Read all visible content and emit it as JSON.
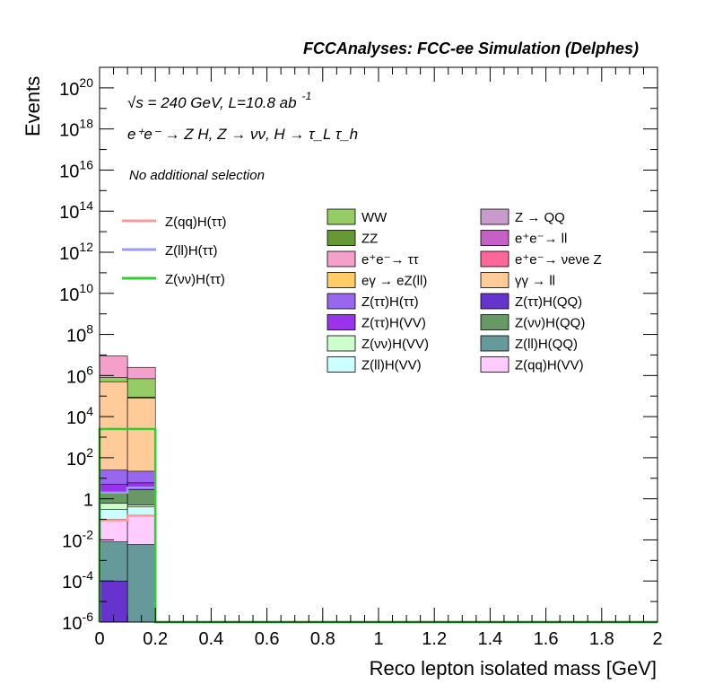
{
  "header": "FCCAnalyses: FCC-ee Simulation (Delphes)",
  "info": {
    "line1": "√s = 240 GeV, L=10.8 ab",
    "line1_sup": "-1",
    "process": "e⁺e⁻ → Z H, Z → νν, H → τ_L τ_h",
    "selection": "No additional selection"
  },
  "chart_data": {
    "type": "histogram",
    "xlabel": "Reco lepton isolated mass [GeV]",
    "ylabel": "Events",
    "xlim": [
      0,
      2
    ],
    "ylim": [
      1e-06,
      1e+21
    ],
    "yscale": "log",
    "x_ticks": [
      "0",
      "0.2",
      "0.4",
      "0.6",
      "0.8",
      "1",
      "1.2",
      "1.4",
      "1.6",
      "1.8",
      "2"
    ],
    "y_ticks": [
      {
        "base": "10",
        "exp": "20",
        "v": 1e+20
      },
      {
        "base": "10",
        "exp": "18",
        "v": 1e+18
      },
      {
        "base": "10",
        "exp": "16",
        "v": 1e+16
      },
      {
        "base": "10",
        "exp": "14",
        "v": 100000000000000.0
      },
      {
        "base": "10",
        "exp": "12",
        "v": 1000000000000.0
      },
      {
        "base": "10",
        "exp": "10",
        "v": 10000000000.0
      },
      {
        "base": "10",
        "exp": "8",
        "v": 100000000.0
      },
      {
        "base": "10",
        "exp": "6",
        "v": 1000000.0
      },
      {
        "base": "10",
        "exp": "4",
        "v": 10000.0
      },
      {
        "base": "10",
        "exp": "2",
        "v": 100.0
      },
      {
        "base": "1",
        "exp": "",
        "v": 1
      },
      {
        "base": "10",
        "exp": "-2",
        "v": 0.01
      },
      {
        "base": "10",
        "exp": "-4",
        "v": 0.0001
      },
      {
        "base": "10",
        "exp": "-6",
        "v": 1e-06
      }
    ],
    "bins": [
      [
        0,
        0.1
      ],
      [
        0.1,
        0.2
      ]
    ],
    "stack_top_to_bottom": [
      {
        "name": "Z → QQ",
        "color": "#c99bcc",
        "cum": [
          600,
          500
        ]
      },
      {
        "name": "e⁺e⁻ → ll",
        "color": "#c65fc6",
        "cum": [
          6000000.0,
          500000.0
        ]
      },
      {
        "name": "e⁺e⁻ → ττ",
        "color": "#f4a0cb",
        "cum": [
          9000000.0,
          2500000.0
        ]
      },
      {
        "name": "WW",
        "color": "#95cc66",
        "cum": [
          800000.0,
          700000.0
        ]
      },
      {
        "name": "ZZ",
        "color": "#669933",
        "cum": [
          80000.0,
          90000.0
        ]
      },
      {
        "name": "e⁺e⁻ → ν_e ν_e Z",
        "color": "#ff6699",
        "cum": [
          1500.0,
          1800.0
        ]
      },
      {
        "name": "eγ → eZ(ll)",
        "color": "#ffcc66",
        "cum": [
          40000.0,
          30000.0
        ]
      },
      {
        "name": "γγ → ll",
        "color": "#ffcc99",
        "cum": [
          500000.0,
          80000.0
        ]
      },
      {
        "name": "Z(ττ)H(ττ)",
        "color": "#9966ee",
        "cum": [
          25,
          22
        ]
      },
      {
        "name": "Z(ττ)H(VV)",
        "color": "#9933ee",
        "cum": [
          5,
          6
        ]
      },
      {
        "name": "Z(ττ)H(QQ)",
        "color": "#6633cc",
        "cum": [
          2e-06,
          1e-06
        ]
      },
      {
        "name": "Z(νν)H(QQ)",
        "color": "#669966",
        "cum": [
          2,
          2.8
        ]
      },
      {
        "name": "Z(νν)H(VV)",
        "color": "#ccffcc",
        "cum": [
          0.6,
          0.5
        ]
      },
      {
        "name": "Z(ll)H(VV)",
        "color": "#ccffff",
        "cum": [
          0.3,
          0.4
        ]
      },
      {
        "name": "Z(qq)H(VV)",
        "color": "#ffccff",
        "cum": [
          0.1,
          0.15
        ]
      },
      {
        "name": "Z(ll)H(QQ)",
        "color": "#669999",
        "cum": [
          0.008,
          0.006
        ]
      }
    ],
    "signal_lines": [
      {
        "name": "Z(qq)H(ττ)",
        "color": "#ff9999",
        "values": [
          0.09,
          0.15
        ]
      },
      {
        "name": "Z(ll)H(ττ)",
        "color": "#9999ff",
        "values": [
          2,
          3.5
        ]
      },
      {
        "name": "Z(νν)H(ττ)",
        "color": "#33cc33",
        "values": [
          2500,
          2500
        ]
      }
    ],
    "bottom_fill": {
      "color": "#6633cc",
      "value": 0.0001
    },
    "legend_signal": [
      "Z(qq)H(ττ)",
      "Z(ll)H(ττ)",
      "Z(νν)H(ττ)"
    ],
    "legend_col1": [
      "WW",
      "ZZ",
      "e⁺e⁻→ ττ",
      "eγ → eZ(ll)",
      "Z(ττ)H(ττ)",
      "Z(ττ)H(VV)",
      "Z(νν)H(VV)",
      "Z(ll)H(VV)"
    ],
    "legend_col2": [
      "Z → QQ",
      "e⁺e⁻→ ll",
      "e⁺e⁻→ νeνe Z",
      "γγ → ll",
      "Z(ττ)H(QQ)",
      "Z(νν)H(QQ)",
      "Z(ll)H(QQ)",
      "Z(qq)H(VV)"
    ],
    "legend_col1_colors": [
      "#95cc66",
      "#669933",
      "#f4a0cb",
      "#ffcc66",
      "#9966ee",
      "#9933ee",
      "#ccffcc",
      "#ccffff"
    ],
    "legend_col2_colors": [
      "#c99bcc",
      "#c65fc6",
      "#ff6699",
      "#ffcc99",
      "#6633cc",
      "#669966",
      "#669999",
      "#ffccff"
    ]
  }
}
